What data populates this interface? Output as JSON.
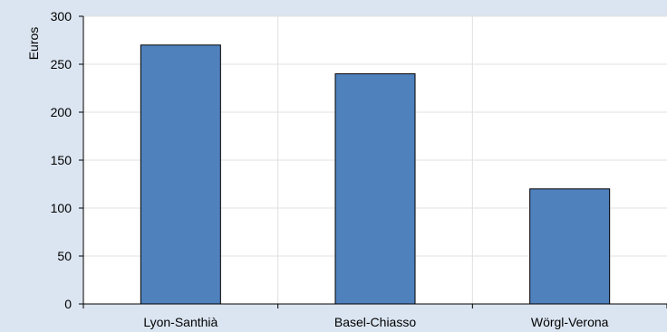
{
  "chart_data": {
    "type": "bar",
    "title": "",
    "xlabel": "",
    "ylabel": "Euros",
    "categories": [
      "Lyon-Santhià",
      "Basel-Chiasso",
      "Wörgl-Verona"
    ],
    "values": [
      270,
      240,
      120
    ],
    "ylim": [
      0,
      300
    ],
    "yticks": [
      0,
      50,
      100,
      150,
      200,
      250,
      300
    ],
    "ytick_labels": [
      "0",
      "50",
      "100",
      "150",
      "200",
      "250",
      "300"
    ],
    "grid": true,
    "legend": "none",
    "colors": {
      "bar_fill": "#4f81bd",
      "bar_stroke": "#000000",
      "plot_background": "#ffffff",
      "page_background": "#dbe5f1",
      "gridline": "#e0e0e0"
    }
  }
}
